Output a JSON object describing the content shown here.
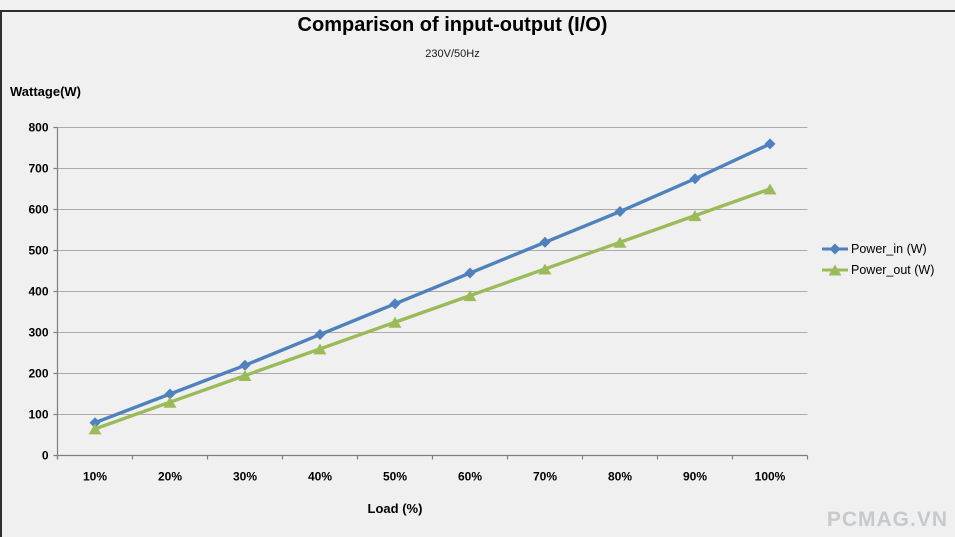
{
  "watermark": {
    "text": "PCMAG.VN"
  },
  "chart_data": {
    "type": "line",
    "title": "Comparison of input-output (I/O)",
    "subtitle": "230V/50Hz",
    "xlabel": "Load (%)",
    "ylabel": "Wattage(W)",
    "categories": [
      "10%",
      "20%",
      "30%",
      "40%",
      "50%",
      "60%",
      "70%",
      "80%",
      "90%",
      "100%"
    ],
    "series": [
      {
        "name": "Power_in (W)",
        "color": "#4f81bd",
        "marker": "diamond",
        "values": [
          80,
          150,
          220,
          295,
          370,
          445,
          520,
          595,
          675,
          760
        ]
      },
      {
        "name": "Power_out (W)",
        "color": "#9bbb59",
        "marker": "triangle",
        "values": [
          65,
          130,
          195,
          260,
          325,
          390,
          455,
          520,
          585,
          650
        ]
      }
    ],
    "ylim": [
      0,
      800
    ],
    "ytick_step": 100,
    "grid": true,
    "legend_position": "right",
    "colors": {
      "gridline": "#ababab",
      "axis": "#7f7f7f"
    }
  }
}
